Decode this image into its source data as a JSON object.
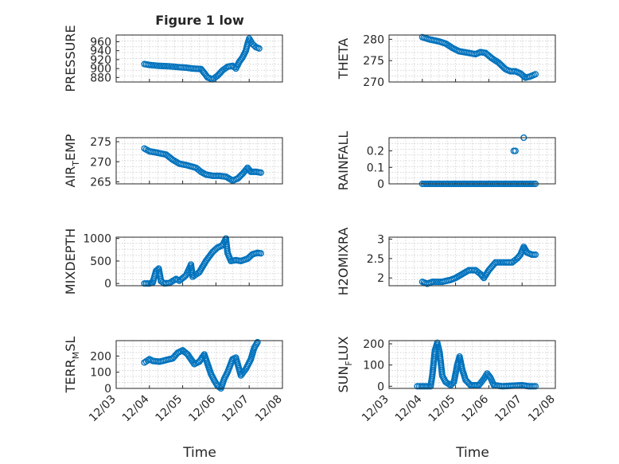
{
  "figure": {
    "title": "Figure 1 low",
    "xlabel": "Time"
  },
  "colors": {
    "series": "#0072BD",
    "axis": "#262626",
    "grid": "#c8c8c8"
  },
  "chart_data": [
    {
      "type": "scatter",
      "ylabel": "PRESSURE",
      "grid": true,
      "xlim": [
        0,
        5
      ],
      "ylim": [
        870,
        975
      ],
      "yticks": [
        "960",
        "940",
        "920",
        "900",
        "880"
      ],
      "ytick_values": [
        960,
        940,
        920,
        900,
        880
      ],
      "curve": [
        [
          0.85,
          910
        ],
        [
          1.0,
          908
        ],
        [
          1.3,
          906
        ],
        [
          1.6,
          905
        ],
        [
          1.9,
          903
        ],
        [
          2.1,
          902
        ],
        [
          2.3,
          900
        ],
        [
          2.55,
          899
        ],
        [
          2.65,
          890
        ],
        [
          2.75,
          880
        ],
        [
          2.9,
          876
        ],
        [
          3.05,
          884
        ],
        [
          3.2,
          896
        ],
        [
          3.35,
          904
        ],
        [
          3.5,
          906
        ],
        [
          3.6,
          900
        ],
        [
          3.7,
          915
        ],
        [
          3.8,
          925
        ],
        [
          3.9,
          940
        ],
        [
          3.95,
          955
        ],
        [
          4.0,
          967
        ],
        [
          4.1,
          955
        ],
        [
          4.2,
          948
        ],
        [
          4.3,
          945
        ]
      ]
    },
    {
      "type": "scatter",
      "ylabel": "THETA",
      "grid": true,
      "xlim": [
        0,
        5
      ],
      "ylim": [
        270,
        281
      ],
      "yticks": [
        "280",
        "275",
        "270"
      ],
      "ytick_values": [
        280,
        275,
        270
      ],
      "curve": [
        [
          1.0,
          280.5
        ],
        [
          1.2,
          280
        ],
        [
          1.5,
          279.5
        ],
        [
          1.7,
          279
        ],
        [
          1.9,
          278
        ],
        [
          2.1,
          277.2
        ],
        [
          2.4,
          276.8
        ],
        [
          2.6,
          276.5
        ],
        [
          2.75,
          277
        ],
        [
          2.9,
          276.8
        ],
        [
          3.1,
          275.5
        ],
        [
          3.3,
          274.5
        ],
        [
          3.5,
          273
        ],
        [
          3.65,
          272.5
        ],
        [
          3.8,
          272.5
        ],
        [
          3.95,
          272
        ],
        [
          4.1,
          271
        ],
        [
          4.25,
          271.3
        ],
        [
          4.4,
          271.8
        ]
      ]
    },
    {
      "type": "scatter",
      "ylabel": "AIR",
      "ylabel_sub": "T",
      "ylabel_suffix": "EMP",
      "grid": true,
      "xlim": [
        0,
        5
      ],
      "ylim": [
        264.5,
        276
      ],
      "yticks": [
        "275",
        "270",
        "265"
      ],
      "ytick_values": [
        275,
        270,
        265
      ],
      "curve": [
        [
          0.85,
          273.3
        ],
        [
          1.0,
          272.6
        ],
        [
          1.2,
          272.3
        ],
        [
          1.5,
          271.8
        ],
        [
          1.7,
          270.5
        ],
        [
          1.9,
          269.5
        ],
        [
          2.1,
          269.2
        ],
        [
          2.4,
          268.5
        ],
        [
          2.55,
          267.5
        ],
        [
          2.7,
          266.8
        ],
        [
          2.9,
          266.5
        ],
        [
          3.1,
          266.5
        ],
        [
          3.3,
          266.3
        ],
        [
          3.5,
          265.3
        ],
        [
          3.65,
          265.8
        ],
        [
          3.8,
          267
        ],
        [
          3.95,
          268.5
        ],
        [
          4.05,
          267.5
        ],
        [
          4.2,
          267.5
        ],
        [
          4.35,
          267.3
        ]
      ]
    },
    {
      "type": "scatter",
      "ylabel": "RAINFALL",
      "grid": true,
      "xlim": [
        0,
        5
      ],
      "ylim": [
        0,
        0.28
      ],
      "yticks": [
        "0.2",
        "0.1",
        "0"
      ],
      "ytick_values": [
        0.2,
        0.1,
        0
      ],
      "curve": [
        [
          1.0,
          0
        ],
        [
          4.4,
          0
        ]
      ],
      "points": [
        [
          3.75,
          0.2
        ],
        [
          3.8,
          0.2
        ],
        [
          4.05,
          0.28
        ]
      ]
    },
    {
      "type": "scatter",
      "ylabel": "MIXDEPTH",
      "grid": true,
      "xlim": [
        0,
        5
      ],
      "ylim": [
        -50,
        1030
      ],
      "yticks": [
        "1000",
        "500",
        "0"
      ],
      "ytick_values": [
        1000,
        500,
        0
      ],
      "curve": [
        [
          0.85,
          0
        ],
        [
          1.0,
          0
        ],
        [
          1.1,
          20
        ],
        [
          1.2,
          280
        ],
        [
          1.28,
          330
        ],
        [
          1.35,
          50
        ],
        [
          1.45,
          0
        ],
        [
          1.6,
          10
        ],
        [
          1.8,
          100
        ],
        [
          1.9,
          60
        ],
        [
          2.1,
          180
        ],
        [
          2.25,
          420
        ],
        [
          2.3,
          150
        ],
        [
          2.5,
          250
        ],
        [
          2.7,
          500
        ],
        [
          2.9,
          700
        ],
        [
          3.05,
          800
        ],
        [
          3.2,
          850
        ],
        [
          3.3,
          1000
        ],
        [
          3.35,
          680
        ],
        [
          3.45,
          500
        ],
        [
          3.6,
          520
        ],
        [
          3.75,
          500
        ],
        [
          3.95,
          550
        ],
        [
          4.1,
          650
        ],
        [
          4.25,
          680
        ],
        [
          4.35,
          670
        ]
      ]
    },
    {
      "type": "scatter",
      "ylabel": "H2OMIXRA",
      "grid": true,
      "xlim": [
        0,
        5
      ],
      "ylim": [
        1.8,
        3.05
      ],
      "yticks": [
        "3",
        "2.5",
        "2"
      ],
      "ytick_values": [
        3,
        2.5,
        2
      ],
      "curve": [
        [
          1.0,
          1.9
        ],
        [
          1.15,
          1.85
        ],
        [
          1.3,
          1.9
        ],
        [
          1.6,
          1.9
        ],
        [
          1.85,
          1.95
        ],
        [
          2.0,
          2.0
        ],
        [
          2.2,
          2.1
        ],
        [
          2.4,
          2.2
        ],
        [
          2.6,
          2.2
        ],
        [
          2.75,
          2.1
        ],
        [
          2.85,
          2.0
        ],
        [
          3.0,
          2.2
        ],
        [
          3.2,
          2.4
        ],
        [
          3.5,
          2.4
        ],
        [
          3.7,
          2.4
        ],
        [
          3.85,
          2.5
        ],
        [
          3.95,
          2.6
        ],
        [
          4.05,
          2.8
        ],
        [
          4.15,
          2.65
        ],
        [
          4.3,
          2.6
        ],
        [
          4.4,
          2.6
        ]
      ]
    },
    {
      "type": "scatter",
      "ylabel": "TERR",
      "ylabel_sub": "M",
      "ylabel_suffix": "SL",
      "grid": true,
      "xlim": [
        0,
        5
      ],
      "ylim": [
        0,
        295
      ],
      "yticks": [
        "200",
        "100",
        "0"
      ],
      "ytick_values": [
        200,
        100,
        0
      ],
      "curve": [
        [
          0.85,
          160
        ],
        [
          1.0,
          180
        ],
        [
          1.1,
          170
        ],
        [
          1.3,
          165
        ],
        [
          1.5,
          175
        ],
        [
          1.7,
          185
        ],
        [
          1.85,
          220
        ],
        [
          2.0,
          235
        ],
        [
          2.15,
          210
        ],
        [
          2.35,
          150
        ],
        [
          2.5,
          165
        ],
        [
          2.65,
          210
        ],
        [
          2.7,
          180
        ],
        [
          2.85,
          90
        ],
        [
          2.95,
          50
        ],
        [
          3.05,
          15
        ],
        [
          3.15,
          0
        ],
        [
          3.25,
          60
        ],
        [
          3.35,
          100
        ],
        [
          3.5,
          180
        ],
        [
          3.6,
          190
        ],
        [
          3.75,
          80
        ],
        [
          3.9,
          120
        ],
        [
          4.05,
          180
        ],
        [
          4.15,
          250
        ],
        [
          4.25,
          285
        ]
      ]
    },
    {
      "type": "scatter",
      "ylabel": "SUN",
      "ylabel_sub": "F",
      "ylabel_suffix": "LUX",
      "grid": true,
      "xlim": [
        0,
        5
      ],
      "ylim": [
        -10,
        215
      ],
      "yticks": [
        "200",
        "100",
        "0"
      ],
      "ytick_values": [
        200,
        100,
        0
      ],
      "xticks": [
        "12/03",
        "12/04",
        "12/05",
        "12/06",
        "12/07",
        "12/08"
      ],
      "xtick_values": [
        0,
        1,
        2,
        3,
        4,
        5
      ],
      "curve": [
        [
          0.85,
          0
        ],
        [
          1.25,
          0
        ],
        [
          1.3,
          50
        ],
        [
          1.38,
          170
        ],
        [
          1.45,
          205
        ],
        [
          1.52,
          160
        ],
        [
          1.6,
          50
        ],
        [
          1.7,
          20
        ],
        [
          1.85,
          5
        ],
        [
          1.95,
          20
        ],
        [
          2.05,
          100
        ],
        [
          2.12,
          140
        ],
        [
          2.2,
          80
        ],
        [
          2.3,
          30
        ],
        [
          2.45,
          5
        ],
        [
          2.7,
          5
        ],
        [
          2.85,
          35
        ],
        [
          2.95,
          60
        ],
        [
          3.05,
          40
        ],
        [
          3.15,
          5
        ],
        [
          3.4,
          0
        ],
        [
          4.0,
          5
        ],
        [
          4.2,
          0
        ],
        [
          4.4,
          0
        ]
      ]
    }
  ]
}
